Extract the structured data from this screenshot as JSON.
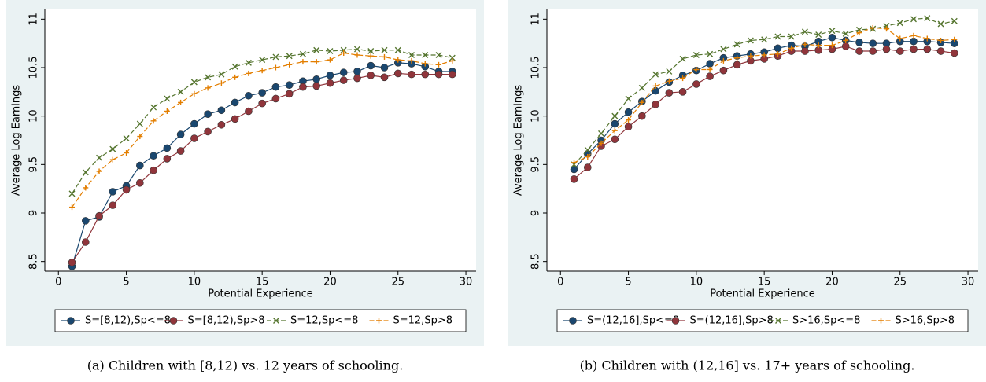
{
  "chart_data": [
    {
      "type": "line",
      "y_label": "Average Log Earnings",
      "x_label": "Potential Experience",
      "caption": "(a) Children with [8,12) vs. 12 years of schooling.",
      "x": [
        1,
        2,
        3,
        4,
        5,
        6,
        7,
        8,
        9,
        10,
        11,
        12,
        13,
        14,
        15,
        16,
        17,
        18,
        19,
        20,
        21,
        22,
        23,
        24,
        25,
        26,
        27,
        28,
        29
      ],
      "xlim": [
        -1,
        30.75
      ],
      "xticks": [
        0,
        5,
        10,
        15,
        20,
        25,
        30
      ],
      "ylim": [
        8.4,
        11.1
      ],
      "yticks": [
        8.5,
        9,
        9.5,
        10,
        10.5,
        11
      ],
      "series": [
        {
          "name": "S=[8,12),Sp<=8",
          "color": "#1a476f",
          "marker": "circle",
          "dashed": false,
          "values": [
            8.45,
            8.92,
            8.96,
            9.22,
            9.28,
            9.49,
            9.59,
            9.67,
            9.81,
            9.92,
            10.02,
            10.06,
            10.14,
            10.21,
            10.24,
            10.3,
            10.32,
            10.36,
            10.38,
            10.42,
            10.45,
            10.46,
            10.52,
            10.5,
            10.55,
            10.54,
            10.51,
            10.46,
            10.46
          ]
        },
        {
          "name": "S=[8,12),Sp>8",
          "color": "#90353b",
          "marker": "circle",
          "dashed": false,
          "values": [
            8.49,
            8.7,
            8.97,
            9.08,
            9.24,
            9.31,
            9.44,
            9.56,
            9.64,
            9.77,
            9.84,
            9.91,
            9.97,
            10.05,
            10.13,
            10.18,
            10.23,
            10.3,
            10.31,
            10.34,
            10.37,
            10.39,
            10.42,
            10.4,
            10.44,
            10.43,
            10.43,
            10.43,
            10.43
          ]
        },
        {
          "name": "S=12,Sp<=8",
          "color": "#55752f",
          "marker": "x",
          "dashed": true,
          "values": [
            9.2,
            9.42,
            9.57,
            9.66,
            9.77,
            9.92,
            10.09,
            10.18,
            10.25,
            10.35,
            10.4,
            10.43,
            10.51,
            10.55,
            10.58,
            10.61,
            10.62,
            10.64,
            10.68,
            10.67,
            10.68,
            10.69,
            10.67,
            10.68,
            10.68,
            10.63,
            10.63,
            10.63,
            10.6
          ]
        },
        {
          "name": "S=12,Sp>8",
          "color": "#e37e00",
          "marker": "plus",
          "dashed": true,
          "values": [
            9.06,
            9.26,
            9.43,
            9.55,
            9.62,
            9.79,
            9.95,
            10.05,
            10.14,
            10.23,
            10.29,
            10.34,
            10.4,
            10.44,
            10.47,
            10.5,
            10.53,
            10.56,
            10.56,
            10.58,
            10.65,
            10.63,
            10.62,
            10.61,
            10.58,
            10.57,
            10.54,
            10.53,
            10.57
          ]
        }
      ]
    },
    {
      "type": "line",
      "y_label": "Average Log Earnings",
      "x_label": "Potential Experience",
      "caption": "(b) Children with (12,16] vs. 17+ years of schooling.",
      "x": [
        1,
        2,
        3,
        4,
        5,
        6,
        7,
        8,
        9,
        10,
        11,
        12,
        13,
        14,
        15,
        16,
        17,
        18,
        19,
        20,
        21,
        22,
        23,
        24,
        25,
        26,
        27,
        28,
        29
      ],
      "xlim": [
        -1,
        30.75
      ],
      "xticks": [
        0,
        5,
        10,
        15,
        20,
        25,
        30
      ],
      "ylim": [
        8.4,
        11.1
      ],
      "yticks": [
        8.5,
        9,
        9.5,
        10,
        10.5,
        11
      ],
      "series": [
        {
          "name": "S=(12,16],Sp<=8",
          "color": "#1a476f",
          "marker": "circle",
          "dashed": false,
          "values": [
            9.45,
            9.61,
            9.75,
            9.92,
            10.04,
            10.15,
            10.26,
            10.35,
            10.42,
            10.47,
            10.54,
            10.6,
            10.62,
            10.64,
            10.66,
            10.7,
            10.73,
            10.72,
            10.77,
            10.81,
            10.78,
            10.76,
            10.75,
            10.75,
            10.77,
            10.77,
            10.77,
            10.76,
            10.75
          ]
        },
        {
          "name": "S=(12,16],Sp>8",
          "color": "#90353b",
          "marker": "circle",
          "dashed": false,
          "values": [
            9.35,
            9.47,
            9.69,
            9.76,
            9.89,
            10.0,
            10.12,
            10.24,
            10.25,
            10.33,
            10.41,
            10.47,
            10.53,
            10.57,
            10.59,
            10.62,
            10.67,
            10.67,
            10.68,
            10.69,
            10.72,
            10.67,
            10.67,
            10.69,
            10.67,
            10.69,
            10.69,
            10.67,
            10.65
          ]
        },
        {
          "name": "S>16,Sp<=8",
          "color": "#55752f",
          "marker": "x",
          "dashed": true,
          "values": [
            9.5,
            9.65,
            9.82,
            10.0,
            10.18,
            10.29,
            10.43,
            10.46,
            10.59,
            10.63,
            10.64,
            10.69,
            10.74,
            10.78,
            10.79,
            10.82,
            10.82,
            10.87,
            10.84,
            10.88,
            10.85,
            10.89,
            10.9,
            10.93,
            10.96,
            11.0,
            11.01,
            10.95,
            10.98
          ]
        },
        {
          "name": "S>16,Sp>8",
          "color": "#e37e00",
          "marker": "plus",
          "dashed": true,
          "values": [
            9.52,
            9.58,
            9.72,
            9.85,
            9.96,
            10.14,
            10.31,
            10.36,
            10.39,
            10.48,
            10.48,
            10.57,
            10.6,
            10.62,
            10.63,
            10.64,
            10.7,
            10.74,
            10.73,
            10.73,
            10.78,
            10.86,
            10.91,
            10.9,
            10.8,
            10.83,
            10.8,
            10.78,
            10.79
          ]
        }
      ]
    }
  ]
}
